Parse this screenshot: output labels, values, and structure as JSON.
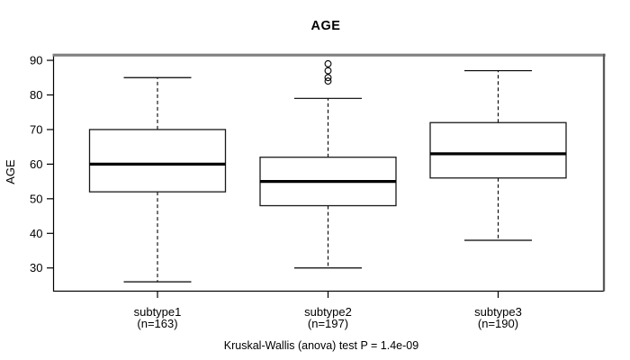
{
  "chart_data": {
    "type": "boxplot",
    "title": "AGE",
    "ylabel": "AGE",
    "xlabel": "",
    "ylim": [
      23.3,
      91.7
    ],
    "y_ticks": [
      30,
      40,
      50,
      60,
      70,
      80,
      90
    ],
    "grid": false,
    "annotation": "Kruskal-Wallis (anova) test P = 1.4e-09",
    "groups": [
      {
        "label": "subtype1",
        "count_label": "(n=163)",
        "n": 163,
        "whisker_low": 26,
        "q1": 52,
        "median": 60,
        "q3": 70,
        "whisker_high": 85,
        "outliers": []
      },
      {
        "label": "subtype2",
        "count_label": "(n=197)",
        "n": 197,
        "whisker_low": 30,
        "q1": 48,
        "median": 55,
        "q3": 62,
        "whisker_high": 79,
        "outliers": [
          84,
          85,
          87,
          89
        ]
      },
      {
        "label": "subtype3",
        "count_label": "(n=190)",
        "n": 190,
        "whisker_low": 38,
        "q1": 56,
        "median": 63,
        "q3": 72,
        "whisker_high": 87,
        "outliers": []
      }
    ]
  },
  "colors": {
    "foreground": "#000000",
    "background": "#ffffff",
    "frame_shadow_top": "#7f7f7f",
    "frame_shadow_right": "#595959"
  }
}
